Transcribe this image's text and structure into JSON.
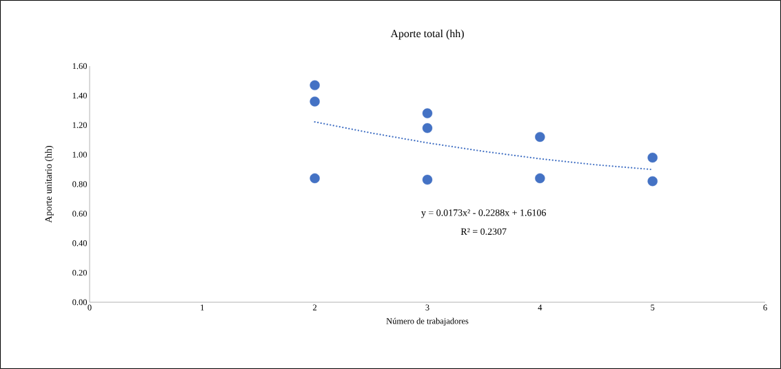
{
  "chart_data": {
    "type": "scatter",
    "title": "Aporte total (hh)",
    "xlabel": "Número de trabajadores",
    "ylabel": "Aporte unitario (hh)",
    "series": [
      {
        "color": "#4472c4",
        "marker": "circle",
        "x": [
          2,
          2,
          2,
          3,
          3,
          3,
          4,
          4,
          5,
          5
        ],
        "values": [
          1.47,
          1.36,
          0.84,
          1.28,
          1.18,
          0.83,
          1.12,
          0.84,
          0.98,
          0.82
        ]
      },
      {
        "type": "line",
        "color": "#4472c4",
        "marker": "none",
        "line_style": "dotted",
        "x": [
          2,
          2.5,
          3,
          3.5,
          4,
          4.5,
          5
        ],
        "values": [
          1.222,
          1.147,
          1.08,
          1.022,
          0.972,
          0.931,
          0.899
        ]
      }
    ],
    "annotations": [
      "y = 0.0173x² - 0.2288x + 1.6106",
      "R² = 0.2307"
    ],
    "xlim": [
      0,
      6
    ],
    "xticks": [
      0,
      1,
      2,
      3,
      4,
      5,
      6
    ],
    "ylim": [
      0,
      1.6
    ],
    "yticks": [
      {
        "value": 0,
        "label": "0.00"
      },
      {
        "value": 0.2,
        "label": "0.20"
      },
      {
        "value": 0.4,
        "label": "0.40"
      },
      {
        "value": 0.6,
        "label": "0.60"
      },
      {
        "value": 0.8,
        "label": "0.80"
      },
      {
        "value": 1.0,
        "label": "1.00"
      },
      {
        "value": 1.2,
        "label": "1.20"
      },
      {
        "value": 1.4,
        "label": "1.40"
      },
      {
        "value": 1.6,
        "label": "1.60"
      }
    ]
  }
}
